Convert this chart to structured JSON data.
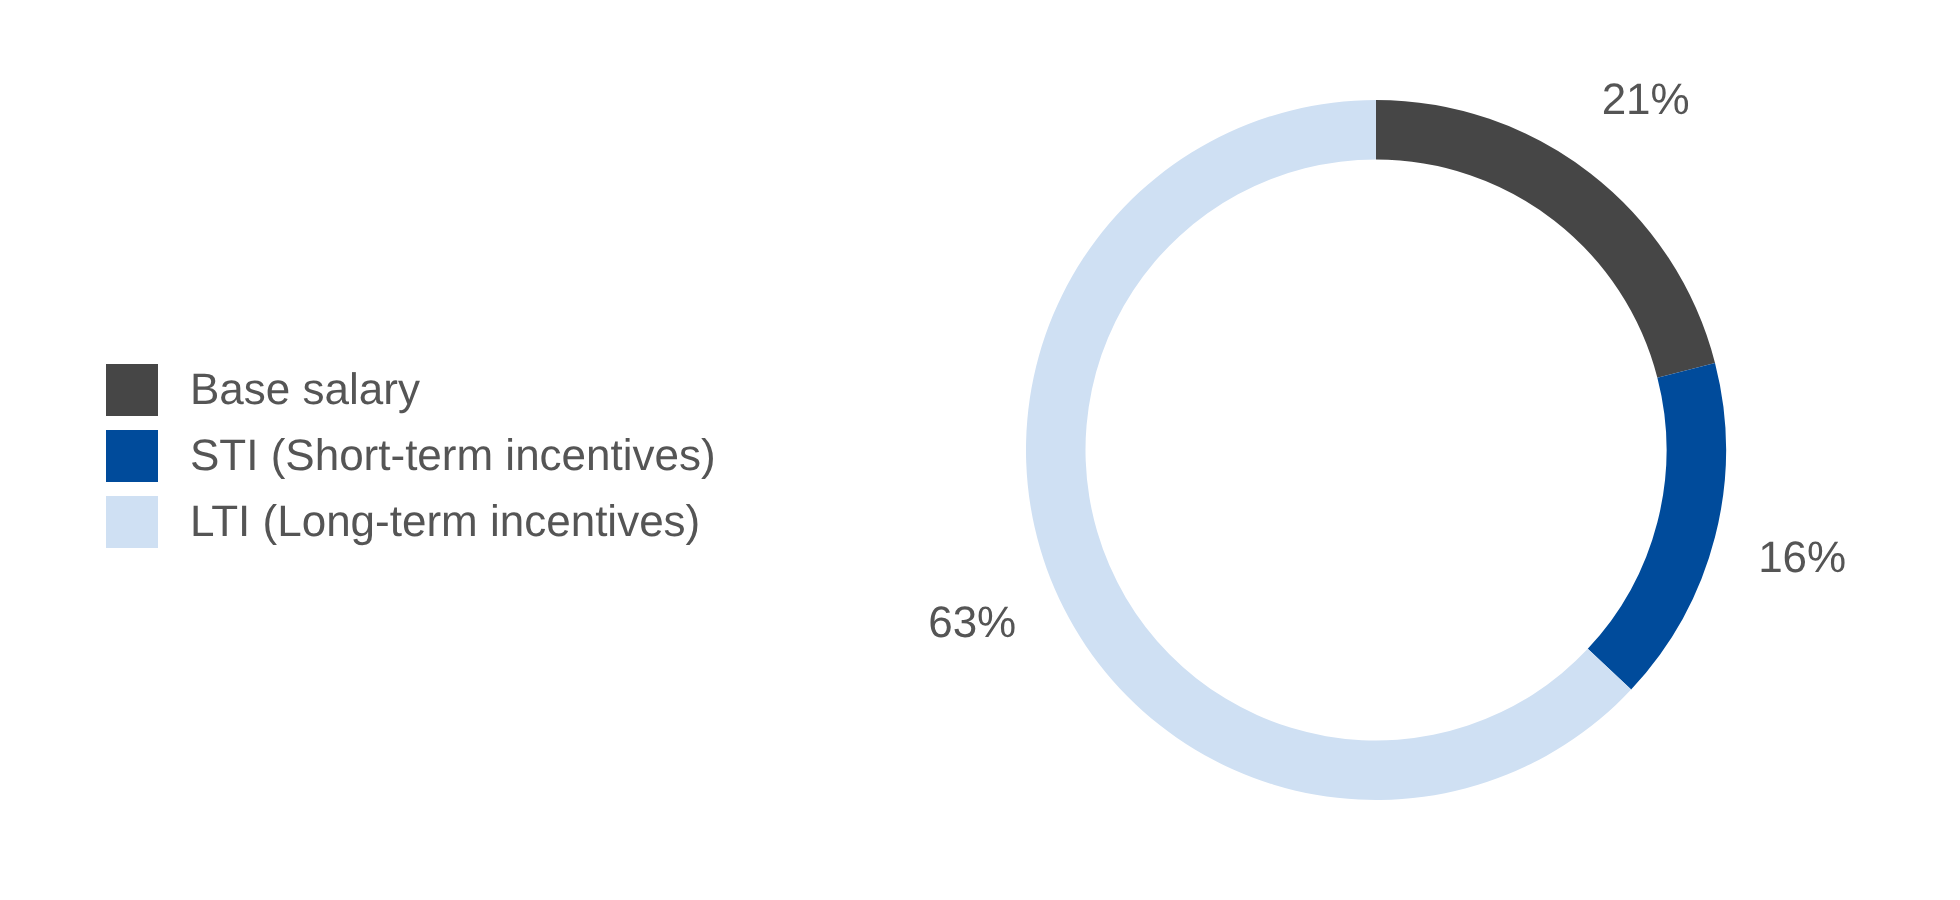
{
  "chart_data": {
    "type": "donut",
    "categories": [
      "Base salary",
      "STI (Short-term incentives)",
      "LTI (Long-term incentives)"
    ],
    "values": [
      21,
      16,
      63
    ],
    "colors": [
      "#464646",
      "#004b9b",
      "#cfe0f3"
    ],
    "value_labels": [
      "21%",
      "16%",
      "63%"
    ],
    "legend": "left"
  }
}
